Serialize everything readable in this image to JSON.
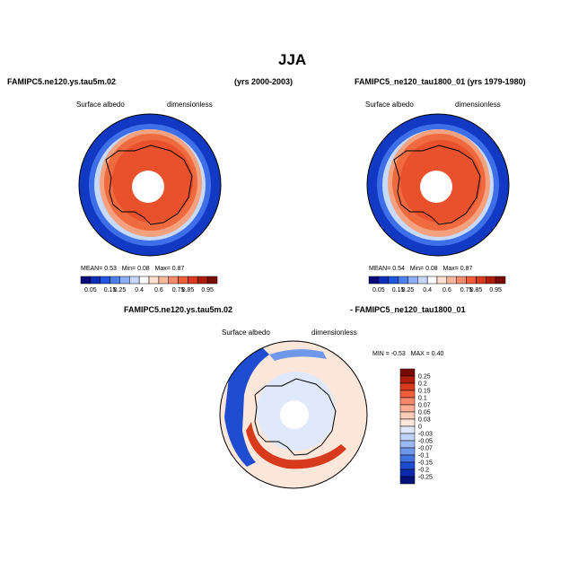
{
  "season_title": "JJA",
  "top_left": {
    "case": "FAMIPC5.ne120.ys.tau5m.02",
    "years": "(yrs 2000-2003)",
    "var_left": "Surface albedo",
    "var_right": "dimensionless",
    "stats": {
      "mean_label": "MEAN=",
      "mean": "0.53",
      "min_label": "Min=",
      "min": "0.08",
      "max_label": "Max=",
      "max": "0.87"
    }
  },
  "top_right": {
    "case": "FAMIPC5_ne120_tau1800_01 (yrs 1979-1980)",
    "var_left": "Surface albedo",
    "var_right": "dimensionless",
    "stats": {
      "mean_label": "MEAN=",
      "mean": "0.54",
      "min_label": "Min=",
      "min": "0.08",
      "max_label": "Max=",
      "max": "0.87"
    }
  },
  "diff": {
    "case_a": "FAMIPC5.ne120.ys.tau5m.02",
    "case_b": "- FAMIPC5_ne120_tau1800_01",
    "var_left": "Surface albedo",
    "var_right": "dimensionless",
    "stats": {
      "min_label": "MIN =",
      "min": "-0.53",
      "max_label": "MAX =",
      "max": "0.40"
    }
  },
  "chart_data": [
    {
      "type": "heatmap",
      "title": "FAMIPC5.ne120.ys.tau5m.02 (yrs 2000-2003)",
      "colorbar": {
        "levels": [
          "0.05",
          "0.15",
          "0.25",
          "0.4",
          "0.6",
          "0.75",
          "0.85",
          "0.95"
        ],
        "colors": [
          "#08087a",
          "#0d2fb8",
          "#1e55e0",
          "#4c7ff0",
          "#8aaff6",
          "#c5d8fb",
          "#ffffff",
          "#fde0d2",
          "#f9b79e",
          "#f58b6a",
          "#ef5d39",
          "#db3a1c",
          "#ad1d0c",
          "#7a0a05"
        ]
      },
      "stats": {
        "mean": 0.53,
        "min": 0.08,
        "max": 0.87
      }
    },
    {
      "type": "heatmap",
      "title": "FAMIPC5_ne120_tau1800_01 (yrs 1979-1980)",
      "colorbar": {
        "levels": [
          "0.05",
          "0.15",
          "0.25",
          "0.4",
          "0.6",
          "0.75",
          "0.85",
          "0.95"
        ],
        "colors": [
          "#08087a",
          "#0d2fb8",
          "#1e55e0",
          "#4c7ff0",
          "#8aaff6",
          "#c5d8fb",
          "#ffffff",
          "#fde0d2",
          "#f9b79e",
          "#f58b6a",
          "#ef5d39",
          "#db3a1c",
          "#ad1d0c",
          "#7a0a05"
        ]
      },
      "stats": {
        "mean": 0.54,
        "min": 0.08,
        "max": 0.87
      }
    },
    {
      "type": "heatmap",
      "title": "FAMIPC5.ne120.ys.tau5m.02 - FAMIPC5_ne120_tau1800_01",
      "colorbar": {
        "levels": [
          "0.25",
          "0.2",
          "0.15",
          "0.1",
          "0.07",
          "0.05",
          "0.03",
          "0",
          "-0.03",
          "-0.05",
          "-0.07",
          "-0.1",
          "-0.15",
          "-0.2",
          "-0.25"
        ],
        "colors": [
          "#7a0a05",
          "#b01f0e",
          "#d83a1e",
          "#ef5f3c",
          "#f6886a",
          "#f9ad92",
          "#fbcdb8",
          "#fde6da",
          "#dfe9fb",
          "#bfd3f8",
          "#9ab9f3",
          "#6f97ec",
          "#4272e2",
          "#1f4dd1",
          "#0d2aae",
          "#06127a"
        ]
      },
      "stats": {
        "min": -0.53,
        "max": 0.4
      }
    }
  ]
}
